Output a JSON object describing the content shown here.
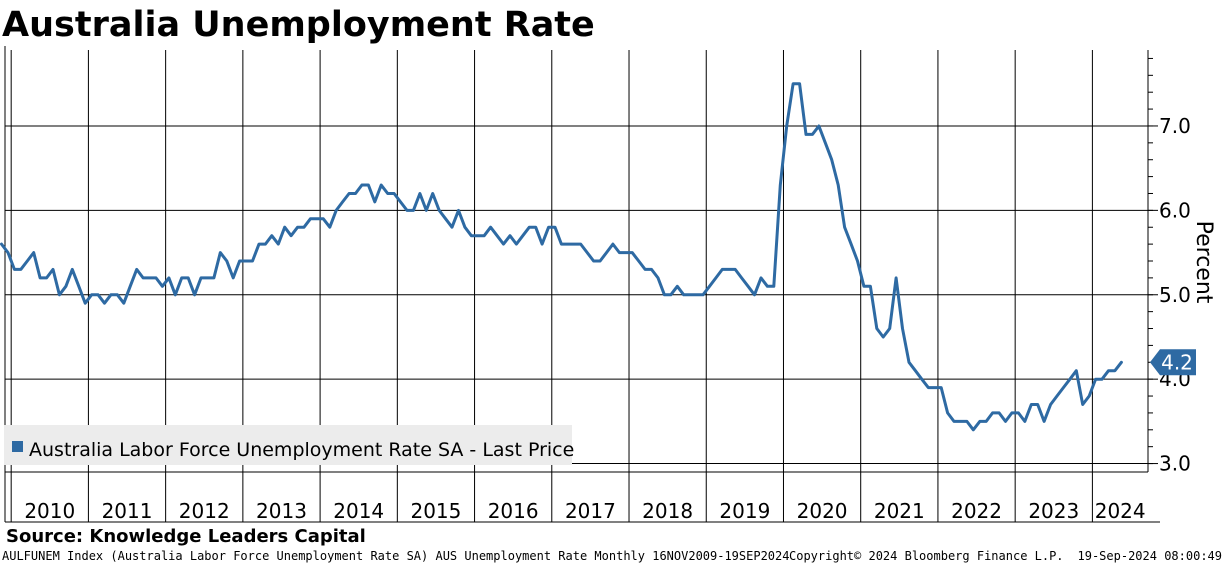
{
  "title": "Australia Unemployment Rate",
  "source": "Source: Knowledge Leaders Capital",
  "footer": {
    "index_info": "AULFUNEM Index (Australia Labor Force Unemployment Rate SA) AUS Unemployment Rate  Monthly 16NOV2009-19SEP2024",
    "copyright": "Copyright© 2024 Bloomberg Finance L.P.",
    "timestamp": "19-Sep-2024 08:00:49"
  },
  "colors": {
    "line": "#2e6aa3",
    "grid": "#000000",
    "legend_bg": "#ececec",
    "axis_text": "#000000"
  },
  "chart_data": {
    "type": "line",
    "ylabel": "Percent",
    "ylim": [
      2.9,
      7.9
    ],
    "yticks": [
      3.0,
      4.0,
      5.0,
      6.0,
      7.0
    ],
    "ytick_labels": [
      "3.0",
      "4.0",
      "5.0",
      "6.0",
      "7.0"
    ],
    "xlim": [
      2009.92,
      2024.72
    ],
    "x_gridlines": [
      2010,
      2011,
      2012,
      2013,
      2014,
      2015,
      2016,
      2017,
      2018,
      2019,
      2020,
      2021,
      2022,
      2023,
      2024
    ],
    "xtick_labels": [
      "2010",
      "2011",
      "2012",
      "2013",
      "2014",
      "2015",
      "2016",
      "2017",
      "2018",
      "2019",
      "2020",
      "2021",
      "2022",
      "2023",
      "2024"
    ],
    "grid": true,
    "legend": {
      "position": "bottom-left",
      "entries": [
        "Australia Labor Force Unemployment Rate SA - Last Price"
      ]
    },
    "last_value_label": "4.2",
    "series": [
      {
        "name": "Australia Labor Force Unemployment Rate SA - Last Price",
        "start": "2009-11",
        "frequency": "monthly",
        "values": [
          5.6,
          5.5,
          5.3,
          5.3,
          5.4,
          5.5,
          5.2,
          5.2,
          5.3,
          5.0,
          5.1,
          5.3,
          5.1,
          4.9,
          5.0,
          5.0,
          4.9,
          5.0,
          5.0,
          4.9,
          5.1,
          5.3,
          5.2,
          5.2,
          5.2,
          5.1,
          5.2,
          5.0,
          5.2,
          5.2,
          5.0,
          5.2,
          5.2,
          5.2,
          5.5,
          5.4,
          5.2,
          5.4,
          5.4,
          5.4,
          5.6,
          5.6,
          5.7,
          5.6,
          5.8,
          5.7,
          5.8,
          5.8,
          5.9,
          5.9,
          5.9,
          5.8,
          6.0,
          6.1,
          6.2,
          6.2,
          6.3,
          6.3,
          6.1,
          6.3,
          6.2,
          6.2,
          6.1,
          6.0,
          6.0,
          6.2,
          6.0,
          6.2,
          6.0,
          5.9,
          5.8,
          6.0,
          5.8,
          5.7,
          5.7,
          5.7,
          5.8,
          5.7,
          5.6,
          5.7,
          5.6,
          5.7,
          5.8,
          5.8,
          5.6,
          5.8,
          5.8,
          5.6,
          5.6,
          5.6,
          5.6,
          5.5,
          5.4,
          5.4,
          5.5,
          5.6,
          5.5,
          5.5,
          5.5,
          5.4,
          5.3,
          5.3,
          5.2,
          5.0,
          5.0,
          5.1,
          5.0,
          5.0,
          5.0,
          5.0,
          5.1,
          5.2,
          5.3,
          5.3,
          5.3,
          5.2,
          5.1,
          5.0,
          5.2,
          5.1,
          5.1,
          6.3,
          7.0,
          7.5,
          7.5,
          6.9,
          6.9,
          7.0,
          6.8,
          6.6,
          6.3,
          5.8,
          5.6,
          5.4,
          5.1,
          5.1,
          4.6,
          4.5,
          4.6,
          5.2,
          4.6,
          4.2,
          4.1,
          4.0,
          3.9,
          3.9,
          3.9,
          3.6,
          3.5,
          3.5,
          3.5,
          3.4,
          3.5,
          3.5,
          3.6,
          3.6,
          3.5,
          3.6,
          3.6,
          3.5,
          3.7,
          3.7,
          3.5,
          3.7,
          3.8,
          3.9,
          4.0,
          4.1,
          3.7,
          3.8,
          4.0,
          4.0,
          4.1,
          4.1,
          4.2
        ]
      }
    ]
  }
}
